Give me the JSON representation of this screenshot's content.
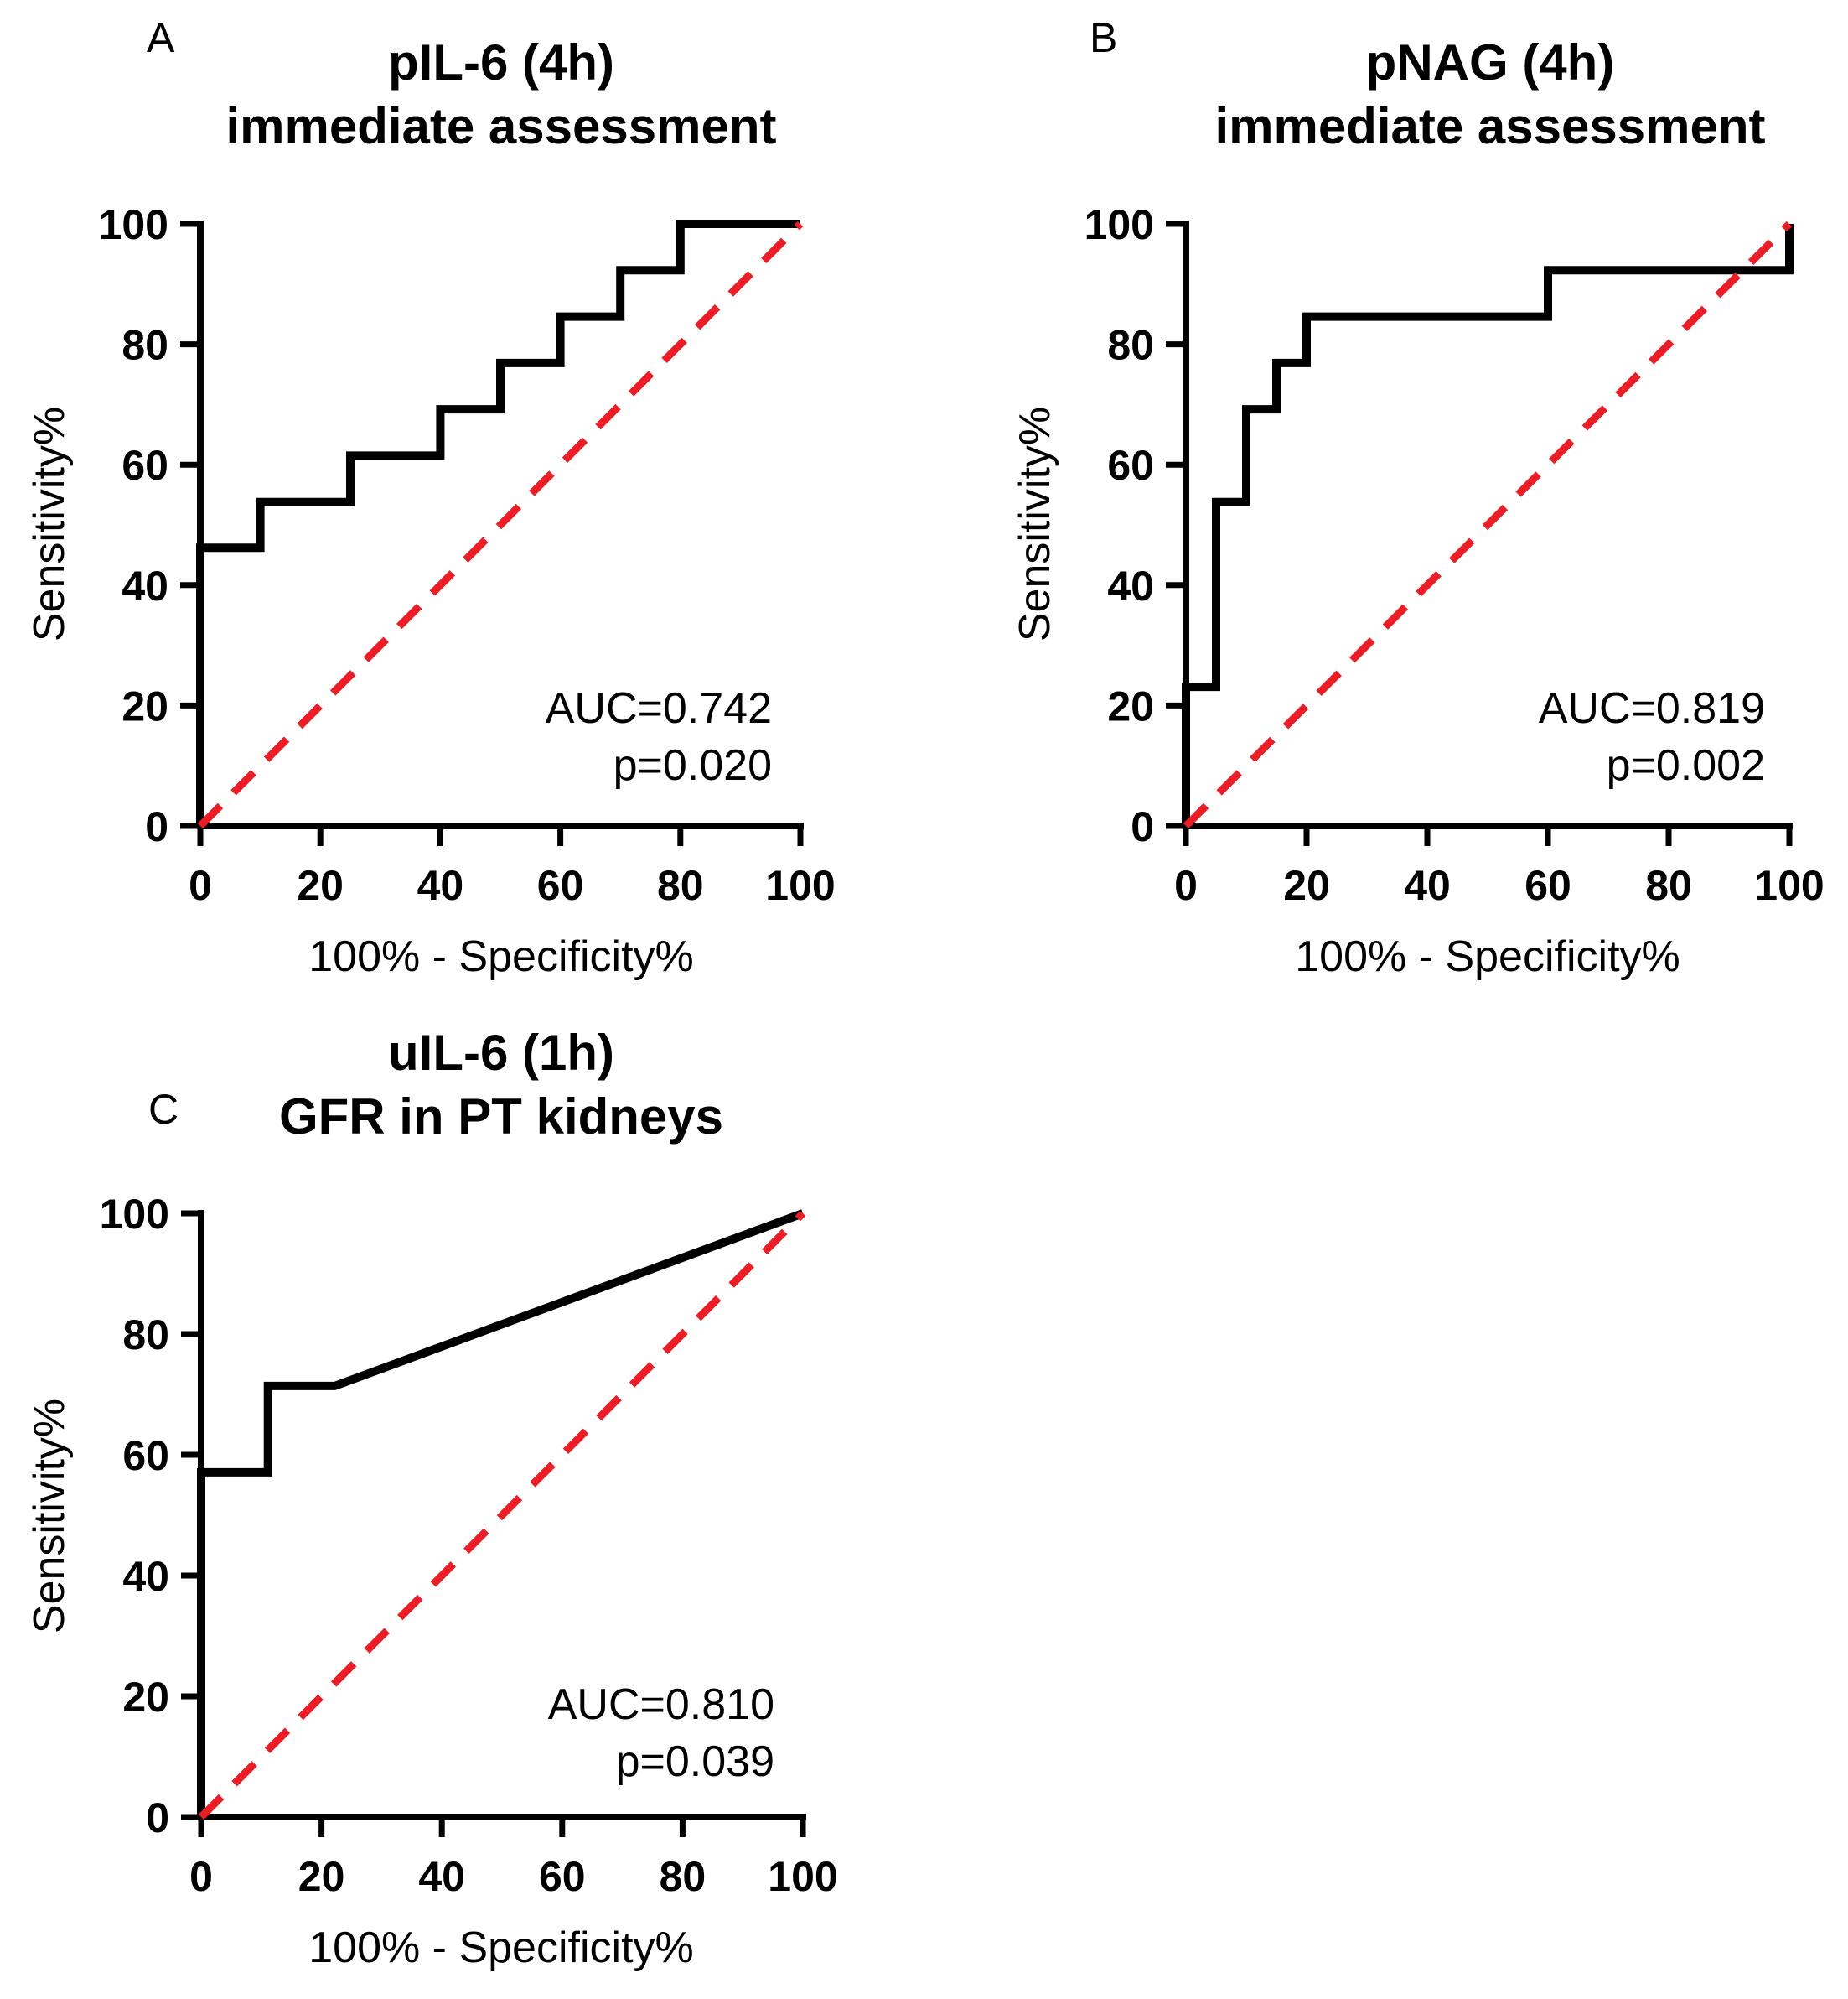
{
  "chart_data": [
    {
      "type": "line",
      "panel_label": "A",
      "title_line1": "pIL-6 (4h)",
      "title_line2": "immediate assessment",
      "xlabel": "100% - Specificity%",
      "ylabel": "Sensitivity%",
      "xlim": [
        0,
        100
      ],
      "ylim": [
        0,
        100
      ],
      "xticks": [
        "0",
        "20",
        "40",
        "60",
        "80",
        "100"
      ],
      "yticks": [
        "0",
        "20",
        "40",
        "60",
        "80",
        "100"
      ],
      "series": [
        {
          "name": "ROC curve",
          "color": "#000000",
          "x": [
            0,
            0,
            10,
            10,
            25,
            25,
            40,
            40,
            50,
            50,
            60,
            60,
            70,
            70,
            80,
            80,
            100
          ],
          "y": [
            0,
            46.2,
            46.2,
            53.8,
            53.8,
            61.5,
            61.5,
            69.2,
            69.2,
            76.9,
            76.9,
            84.6,
            84.6,
            92.3,
            92.3,
            100,
            100
          ]
        },
        {
          "name": "Reference line",
          "color": "#ee1c25",
          "style": "dashed",
          "x": [
            0,
            100
          ],
          "y": [
            0,
            100
          ]
        }
      ],
      "annotation_auc": "AUC=0.742",
      "annotation_p": "p=0.020"
    },
    {
      "type": "line",
      "panel_label": "B",
      "title_line1": "pNAG (4h)",
      "title_line2": "immediate assessment",
      "xlabel": "100% - Specificity%",
      "ylabel": "Sensitivity%",
      "xlim": [
        0,
        100
      ],
      "ylim": [
        0,
        100
      ],
      "xticks": [
        "0",
        "20",
        "40",
        "60",
        "80",
        "100"
      ],
      "yticks": [
        "0",
        "20",
        "40",
        "60",
        "80",
        "100"
      ],
      "series": [
        {
          "name": "ROC curve",
          "color": "#000000",
          "x": [
            0,
            0,
            5,
            5,
            10,
            10,
            15,
            15,
            20,
            20,
            60,
            60,
            100,
            100
          ],
          "y": [
            0,
            23.1,
            23.1,
            53.8,
            53.8,
            69.2,
            69.2,
            76.9,
            76.9,
            84.6,
            84.6,
            92.3,
            92.3,
            100
          ]
        },
        {
          "name": "Reference line",
          "color": "#ee1c25",
          "style": "dashed",
          "x": [
            0,
            100
          ],
          "y": [
            0,
            100
          ]
        }
      ],
      "annotation_auc": "AUC=0.819",
      "annotation_p": "p=0.002"
    },
    {
      "type": "line",
      "panel_label": "C",
      "title_line1": "uIL-6 (1h)",
      "title_line2": "GFR in PT kidneys",
      "xlabel": "100% - Specificity%",
      "ylabel": "Sensitivity%",
      "xlim": [
        0,
        100
      ],
      "ylim": [
        0,
        100
      ],
      "xticks": [
        "0",
        "20",
        "40",
        "60",
        "80",
        "100"
      ],
      "yticks": [
        "0",
        "20",
        "40",
        "60",
        "80",
        "100"
      ],
      "series": [
        {
          "name": "ROC curve",
          "color": "#000000",
          "x": [
            0,
            0,
            11.1,
            11.1,
            22.2,
            100
          ],
          "y": [
            0,
            57.1,
            57.1,
            71.4,
            71.4,
            100
          ]
        },
        {
          "name": "Reference line",
          "color": "#ee1c25",
          "style": "dashed",
          "x": [
            0,
            100
          ],
          "y": [
            0,
            100
          ]
        }
      ],
      "annotation_auc": "AUC=0.810",
      "annotation_p": "p=0.039"
    }
  ]
}
